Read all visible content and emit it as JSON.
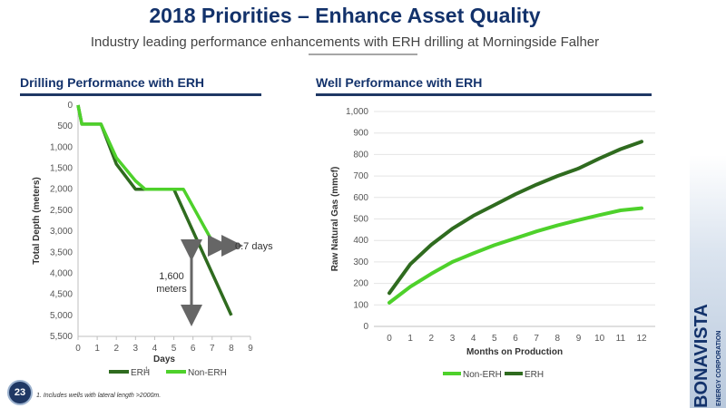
{
  "slide": {
    "title": "2018 Priorities – Enhance Asset Quality",
    "subtitle": "Industry leading performance enhancements with ERH drilling at Morningside Falher",
    "page_number": "23",
    "footnote": "1. Includes wells with lateral length >2000m.",
    "brand": "BONAVISTA",
    "brand_sub": "ENERGY CORPORATION",
    "colors": {
      "navy": "#13326b",
      "dark_green": "#2f6b1f",
      "light_green": "#4ed12b"
    }
  },
  "left": {
    "section_title": "Drilling Performance with ERH",
    "annotation_days": "0.7 days",
    "annotation_meters_1": "1,600",
    "annotation_meters_2": "meters",
    "legend_erh": "ERH",
    "legend_erh_sup": "1",
    "legend_non_erh": "Non-ERH"
  },
  "right": {
    "section_title": "Well Performance with ERH",
    "legend_non_erh": "Non-ERH",
    "legend_erh": "ERH"
  },
  "chart_data": [
    {
      "type": "line",
      "title": "Drilling Performance with ERH",
      "xlabel": "Days",
      "ylabel": "Total Depth (meters)",
      "xlim": [
        0,
        9
      ],
      "ylim": [
        0,
        5500
      ],
      "y_inverted": true,
      "x_ticks": [
        "0",
        "1",
        "2",
        "3",
        "4",
        "5",
        "6",
        "7",
        "8",
        "9"
      ],
      "y_ticks": [
        "0",
        "500",
        "1,000",
        "1,500",
        "2,000",
        "2,500",
        "3,000",
        "3,500",
        "4,000",
        "4,500",
        "5,000",
        "5,500"
      ],
      "grid": false,
      "legend_position": "bottom",
      "series": [
        {
          "name": "ERH",
          "color": "#2f6b1f",
          "points": [
            [
              0,
              0
            ],
            [
              0.2,
              450
            ],
            [
              1.2,
              450
            ],
            [
              2,
              1400
            ],
            [
              3,
              2000
            ],
            [
              3.5,
              2000
            ],
            [
              5,
              2000
            ],
            [
              8,
              5000
            ]
          ]
        },
        {
          "name": "Non-ERH",
          "color": "#4ed12b",
          "points": [
            [
              0,
              0
            ],
            [
              0.2,
              450
            ],
            [
              1.2,
              450
            ],
            [
              2,
              1250
            ],
            [
              3,
              1800
            ],
            [
              3.5,
              2000
            ],
            [
              5.5,
              2000
            ],
            [
              7.2,
              3400
            ]
          ]
        }
      ]
    },
    {
      "type": "line",
      "title": "Well Performance with ERH",
      "xlabel": "Months on Production",
      "ylabel": "Raw Natural Gas (mmcf)",
      "xlim": [
        0,
        12
      ],
      "ylim": [
        0,
        1000
      ],
      "x_ticks": [
        "0",
        "1",
        "2",
        "3",
        "4",
        "5",
        "6",
        "7",
        "8",
        "9",
        "10",
        "11",
        "12"
      ],
      "y_ticks": [
        "0",
        "100",
        "200",
        "300",
        "400",
        "500",
        "600",
        "700",
        "800",
        "900",
        "1,000"
      ],
      "grid": true,
      "legend_position": "bottom",
      "series": [
        {
          "name": "Non-ERH",
          "color": "#4ed12b",
          "values": [
            110,
            185,
            245,
            300,
            340,
            378,
            410,
            442,
            470,
            495,
            518,
            540,
            550
          ]
        },
        {
          "name": "ERH",
          "color": "#2f6b1f",
          "values": [
            155,
            290,
            380,
            455,
            515,
            565,
            615,
            660,
            700,
            735,
            782,
            825,
            860
          ]
        }
      ]
    }
  ]
}
